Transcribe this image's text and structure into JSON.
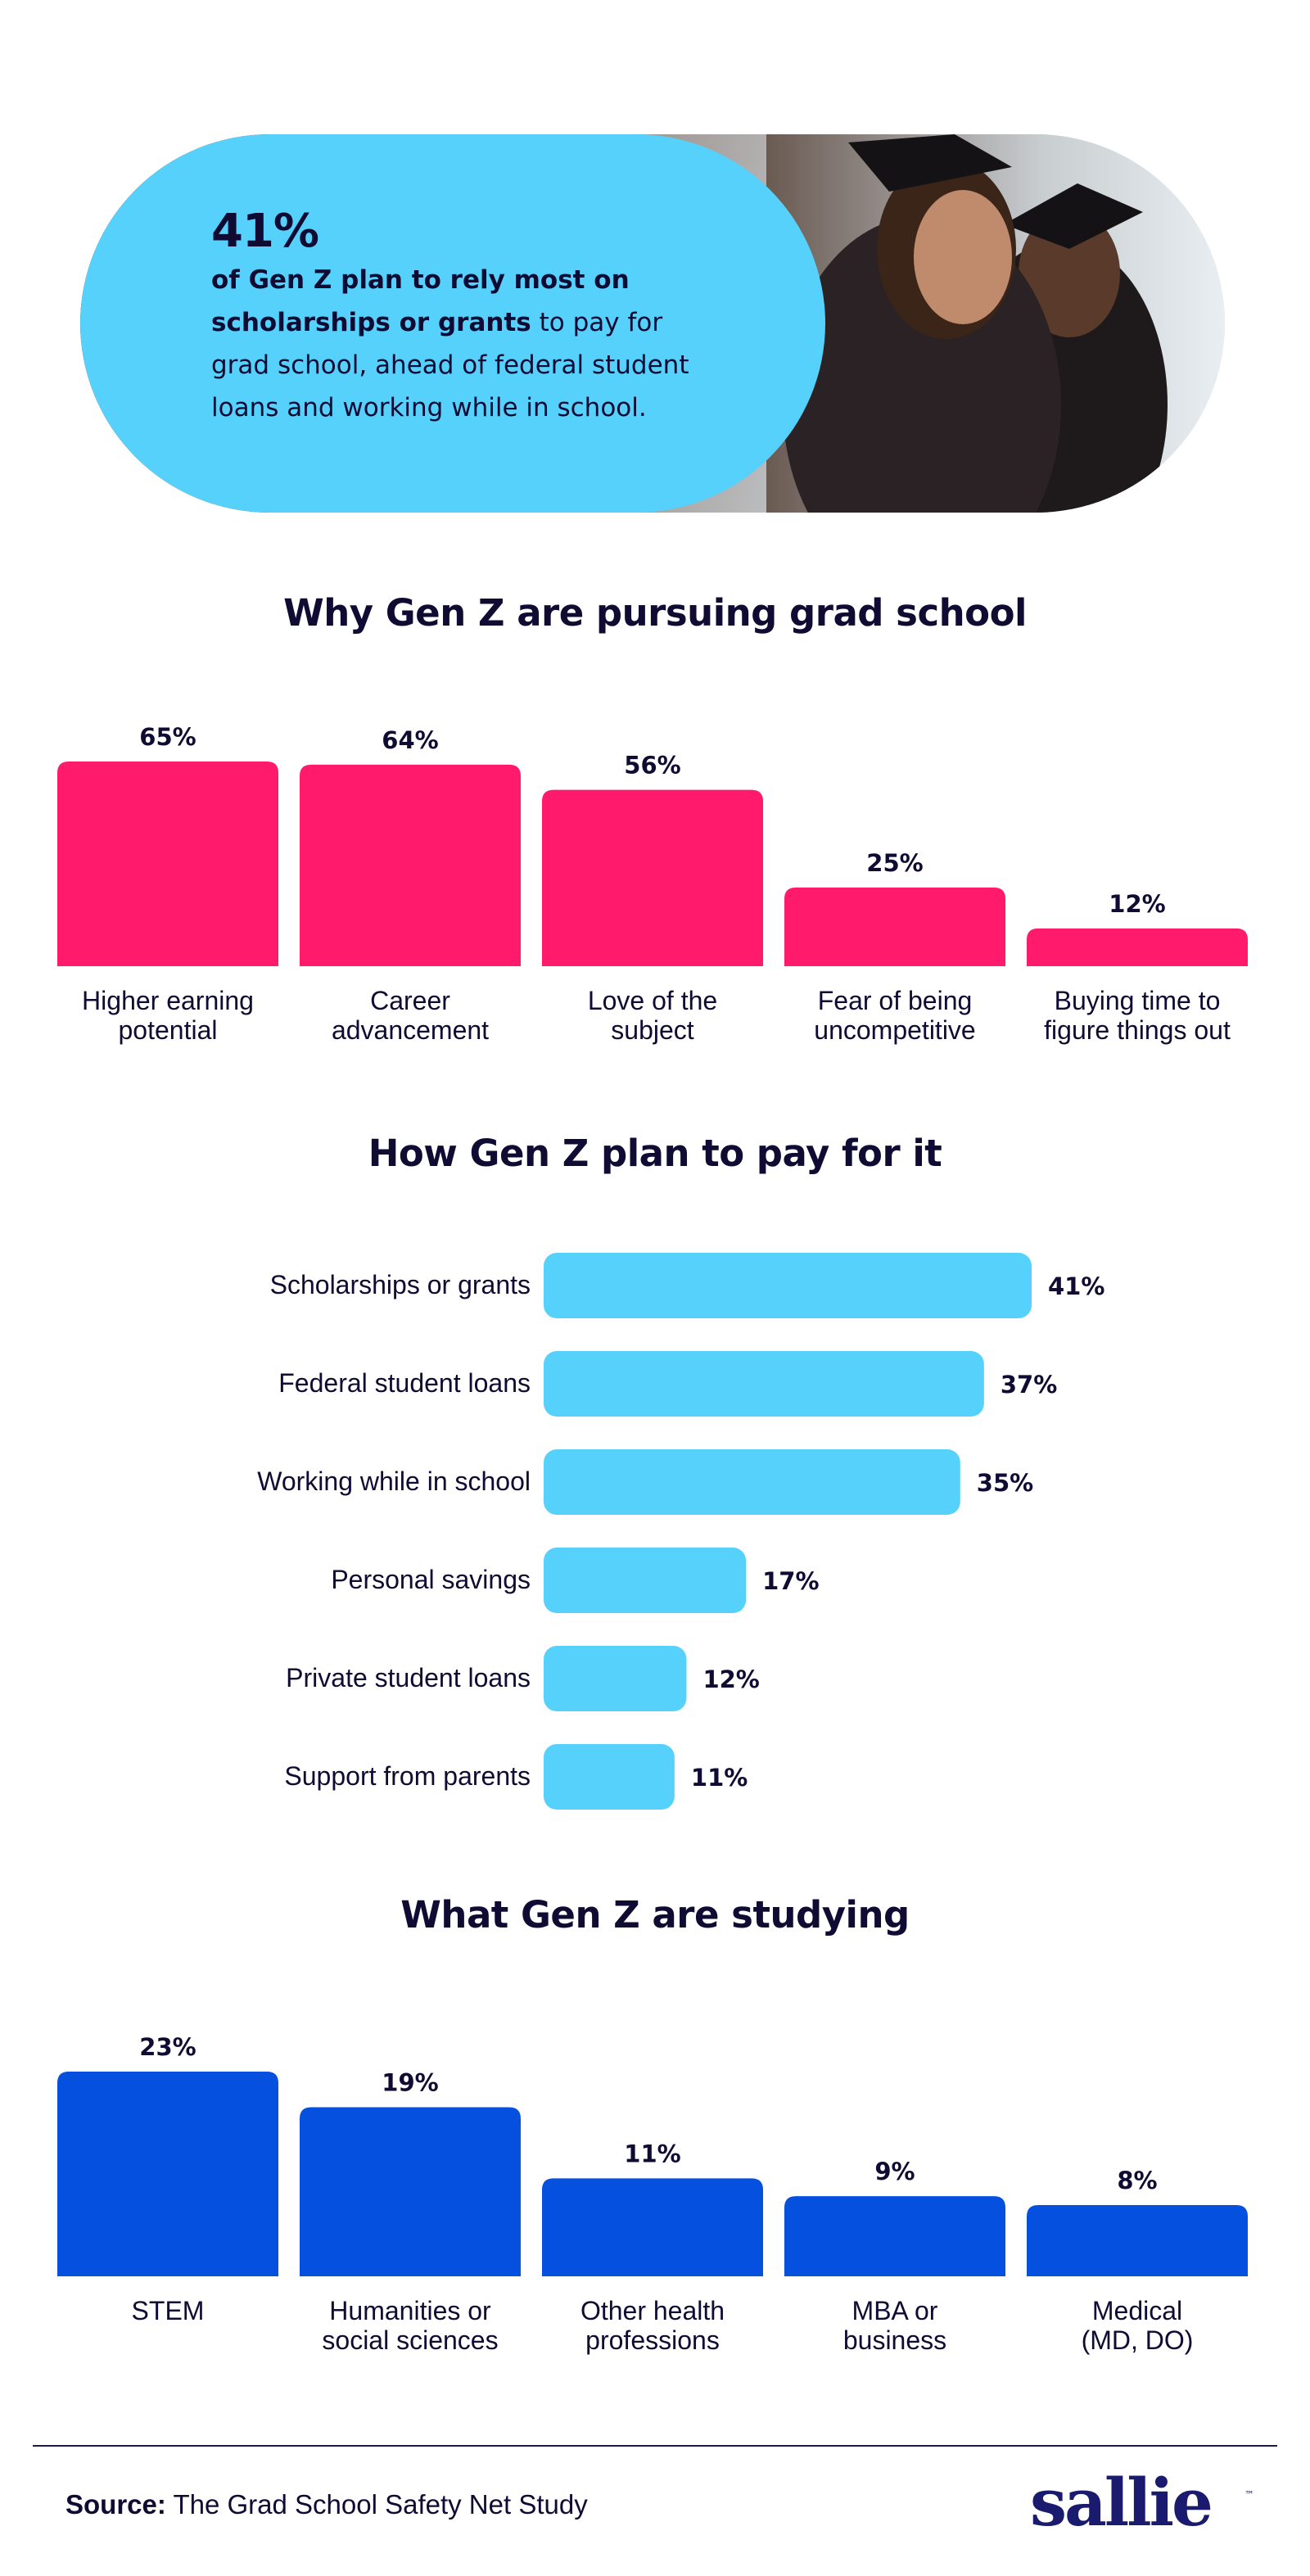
{
  "hero": {
    "stat": "41%",
    "text_bold": "of Gen Z plan to rely most on scholarships or grants",
    "text_rest": " to pay for grad school, ahead of federal student loans and working while in school."
  },
  "chart_data": [
    {
      "type": "bar",
      "title": "Why Gen Z are pursuing grad school",
      "categories": [
        "Higher earning potential",
        "Career advancement",
        "Love of the subject",
        "Fear of being uncompetitive",
        "Buying time to figure things out"
      ],
      "category_lines": [
        [
          "Higher earning",
          "potential"
        ],
        [
          "Career",
          "advancement"
        ],
        [
          "Love of the",
          "subject"
        ],
        [
          "Fear of being",
          "uncompetitive"
        ],
        [
          "Buying time to",
          "figure things out"
        ]
      ],
      "values": [
        65,
        64,
        56,
        25,
        12
      ],
      "value_labels": [
        "65%",
        "64%",
        "56%",
        "25%",
        "12%"
      ],
      "ylim": [
        0,
        65
      ],
      "color": "#ff1a6c"
    },
    {
      "type": "bar",
      "orientation": "horizontal",
      "title": "How Gen Z plan to pay for it",
      "categories": [
        "Scholarships or grants",
        "Federal student loans",
        "Working while in school",
        "Personal savings",
        "Private student loans",
        "Support from parents"
      ],
      "values": [
        41,
        37,
        35,
        17,
        12,
        11
      ],
      "value_labels": [
        "41%",
        "37%",
        "35%",
        "17%",
        "12%",
        "11%"
      ],
      "xlim": [
        0,
        41
      ],
      "color": "#55d1fc"
    },
    {
      "type": "bar",
      "title": "What Gen Z are studying",
      "categories": [
        "STEM",
        "Humanities or social sciences",
        "Other health professions",
        "MBA or business",
        "Medical (MD, DO)"
      ],
      "category_lines": [
        [
          "STEM"
        ],
        [
          "Humanities or",
          "social sciences"
        ],
        [
          "Other health",
          "professions"
        ],
        [
          "MBA or",
          "business"
        ],
        [
          "Medical",
          "(MD, DO)"
        ]
      ],
      "values": [
        23,
        19,
        11,
        9,
        8
      ],
      "value_labels": [
        "23%",
        "19%",
        "11%",
        "9%",
        "8%"
      ],
      "ylim": [
        0,
        23
      ],
      "color": "#0650e0"
    }
  ],
  "footer": {
    "source_label": "Source:",
    "source_text": " The Grad School Safety Net Study",
    "logo": "sallie",
    "logo_tm": "™"
  }
}
